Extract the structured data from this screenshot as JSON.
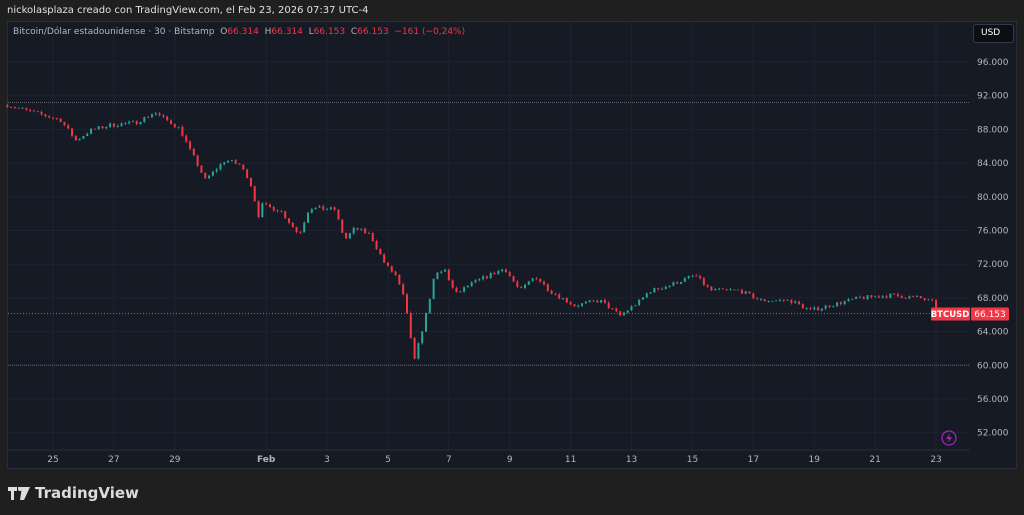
{
  "credit": "nickolasplaza creado con TradingView.com, el Feb 23, 2026 07:37 UTC-4",
  "legend": {
    "symbol": "Bitcoin/Dólar estadounidense · 30 · Bitstamp",
    "o_label": "O",
    "o": "66.314",
    "h_label": "H",
    "h": "66.314",
    "l_label": "L",
    "l": "66.153",
    "c_label": "C",
    "c": "66.153",
    "change": "−161 (−0,24%)"
  },
  "currency_button": "USD",
  "logo_text": "TradingView",
  "colors": {
    "up": "#26a69a",
    "down": "#f23645",
    "background": "#161a25",
    "alert_icon": "#9c27b0"
  },
  "chart_data": {
    "type": "candlestick",
    "symbol_tag": "BTCUSD",
    "last_price_label": "66.153",
    "last_price": 66153,
    "ylim": [
      49500,
      99000
    ],
    "y_ticks": [
      96000,
      92000,
      88000,
      84000,
      80000,
      76000,
      72000,
      68000,
      64000,
      60000,
      56000,
      52000
    ],
    "y_tick_labels": [
      "96.000",
      "92.000",
      "88.000",
      "84.000",
      "80.000",
      "76.000",
      "72.000",
      "68.000",
      "64.000",
      "60.000",
      "56.000",
      "52.000"
    ],
    "horizontal_lines": [
      91200,
      60000
    ],
    "x_ticks": [
      {
        "date": "2026-01-25",
        "label": "25"
      },
      {
        "date": "2026-01-27",
        "label": "27"
      },
      {
        "date": "2026-01-29",
        "label": "29"
      },
      {
        "date": "2026-02-01",
        "label": "Feb"
      },
      {
        "date": "2026-02-03",
        "label": "3"
      },
      {
        "date": "2026-02-05",
        "label": "5"
      },
      {
        "date": "2026-02-07",
        "label": "7"
      },
      {
        "date": "2026-02-09",
        "label": "9"
      },
      {
        "date": "2026-02-11",
        "label": "11"
      },
      {
        "date": "2026-02-13",
        "label": "13"
      },
      {
        "date": "2026-02-15",
        "label": "15"
      },
      {
        "date": "2026-02-17",
        "label": "17"
      },
      {
        "date": "2026-02-19",
        "label": "19"
      },
      {
        "date": "2026-02-21",
        "label": "21"
      },
      {
        "date": "2026-02-23",
        "label": "23"
      }
    ],
    "price_path": [
      [
        "2026-01-23T12:00",
        90900
      ],
      [
        "2026-01-25T06:00",
        89100
      ],
      [
        "2026-01-25T18:00",
        86700
      ],
      [
        "2026-01-26T06:00",
        87900
      ],
      [
        "2026-01-26T21:00",
        88500
      ],
      [
        "2026-01-27T17:00",
        88800
      ],
      [
        "2026-01-28T08:00",
        90000
      ],
      [
        "2026-01-29T04:00",
        88100
      ],
      [
        "2026-01-29T12:00",
        85500
      ],
      [
        "2026-01-29T16:00",
        84400
      ],
      [
        "2026-01-30T00:00",
        82000
      ],
      [
        "2026-01-30T16:00",
        84400
      ],
      [
        "2026-01-31T03:00",
        83800
      ],
      [
        "2026-01-31T11:00",
        82000
      ],
      [
        "2026-01-31T18:00",
        77800
      ],
      [
        "2026-01-31T21:00",
        79000
      ],
      [
        "2026-02-01T11:00",
        78400
      ],
      [
        "2026-02-02T02:00",
        75500
      ],
      [
        "2026-02-02T10:00",
        78700
      ],
      [
        "2026-02-03T06:00",
        78500
      ],
      [
        "2026-02-03T14:00",
        74900
      ],
      [
        "2026-02-03T22:00",
        76300
      ],
      [
        "2026-02-04T10:00",
        75500
      ],
      [
        "2026-02-04T22:00",
        71900
      ],
      [
        "2026-02-05T06:00",
        70700
      ],
      [
        "2026-02-05T13:00",
        67800
      ],
      [
        "2026-02-05T17:00",
        64200
      ],
      [
        "2026-02-05T21:00",
        60600
      ],
      [
        "2026-02-06T05:00",
        65400
      ],
      [
        "2026-02-06T13:00",
        70700
      ],
      [
        "2026-02-06T21:00",
        71300
      ],
      [
        "2026-02-07T05:00",
        68400
      ],
      [
        "2026-02-07T17:00",
        69600
      ],
      [
        "2026-02-08T08:00",
        70700
      ],
      [
        "2026-02-08T20:00",
        71500
      ],
      [
        "2026-02-09T08:00",
        68800
      ],
      [
        "2026-02-09T20:00",
        70600
      ],
      [
        "2026-02-10T08:00",
        68800
      ],
      [
        "2026-02-11T03:00",
        67100
      ],
      [
        "2026-02-11T23:00",
        67700
      ],
      [
        "2026-02-12T15:00",
        65900
      ],
      [
        "2026-02-13T07:00",
        67700
      ],
      [
        "2026-02-13T14:00",
        68800
      ],
      [
        "2026-02-14T06:00",
        69500
      ],
      [
        "2026-02-15T02:00",
        70700
      ],
      [
        "2026-02-15T14:00",
        68900
      ],
      [
        "2026-02-16T13:00",
        68900
      ],
      [
        "2026-02-17T05:00",
        67700
      ],
      [
        "2026-02-18T05:00",
        67700
      ],
      [
        "2026-02-18T21:00",
        66500
      ],
      [
        "2026-02-19T12:00",
        67100
      ],
      [
        "2026-02-20T12:00",
        68000
      ],
      [
        "2026-02-21T12:00",
        68300
      ],
      [
        "2026-02-22T11:00",
        68000
      ],
      [
        "2026-02-22T23:00",
        67400
      ],
      [
        "2026-02-23T01:00",
        65300
      ],
      [
        "2026-02-23T07:00",
        66153
      ]
    ]
  }
}
